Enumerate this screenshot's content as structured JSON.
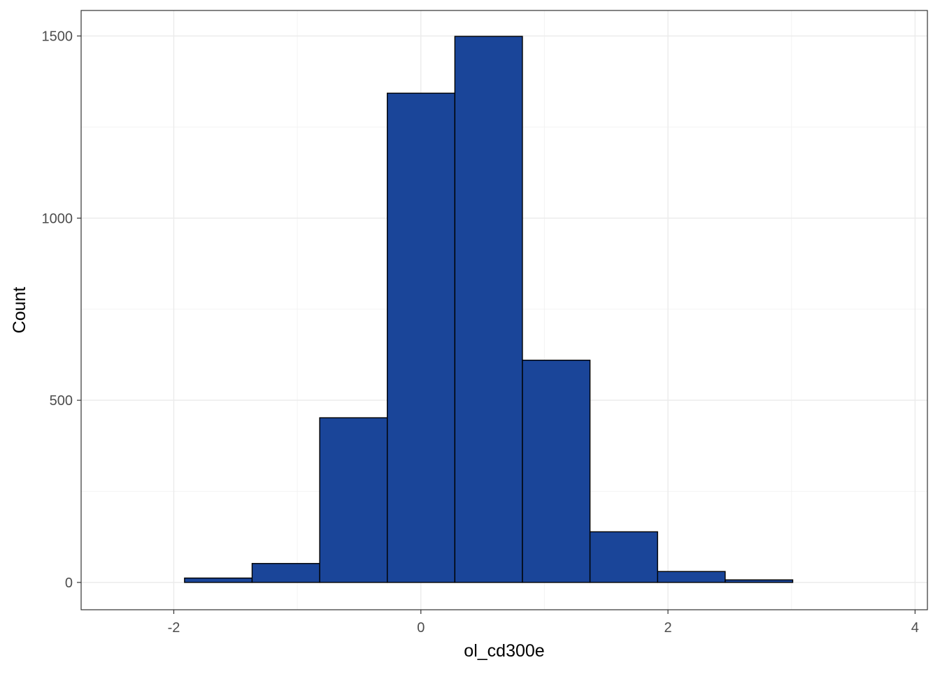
{
  "chart_data": {
    "type": "histogram",
    "xlabel": "ol_cd300e",
    "ylabel": "Count",
    "xlim": [
      -2.75,
      4.1
    ],
    "ylim": [
      -75,
      1570
    ],
    "x_ticks": [
      -2,
      0,
      2,
      4
    ],
    "x_tick_labels": [
      "-2",
      "0",
      "2",
      "4"
    ],
    "y_ticks": [
      0,
      500,
      1000,
      1500
    ],
    "y_tick_labels": [
      "0",
      "500",
      "1000",
      "1500"
    ],
    "grid": true,
    "legend": "none",
    "bin_width": 0.547,
    "bins": [
      {
        "x0": -2.46,
        "x1": -1.913,
        "count": 0
      },
      {
        "x0": -1.913,
        "x1": -1.366,
        "count": 12
      },
      {
        "x0": -1.366,
        "x1": -0.819,
        "count": 52
      },
      {
        "x0": -0.819,
        "x1": -0.272,
        "count": 452
      },
      {
        "x0": -0.272,
        "x1": 0.275,
        "count": 1343
      },
      {
        "x0": 0.275,
        "x1": 0.822,
        "count": 1499
      },
      {
        "x0": 0.822,
        "x1": 1.369,
        "count": 610
      },
      {
        "x0": 1.369,
        "x1": 1.916,
        "count": 139
      },
      {
        "x0": 1.916,
        "x1": 2.463,
        "count": 30
      },
      {
        "x0": 2.463,
        "x1": 3.01,
        "count": 7
      },
      {
        "x0": 3.01,
        "x1": 3.557,
        "count": 0
      },
      {
        "x0": 3.557,
        "x1": 4.104,
        "count": 0
      }
    ],
    "colors": {
      "bar_fill": "#1a4599",
      "bar_outline": "#000000",
      "panel_border": "#333333",
      "grid": "#ebebeb"
    }
  }
}
